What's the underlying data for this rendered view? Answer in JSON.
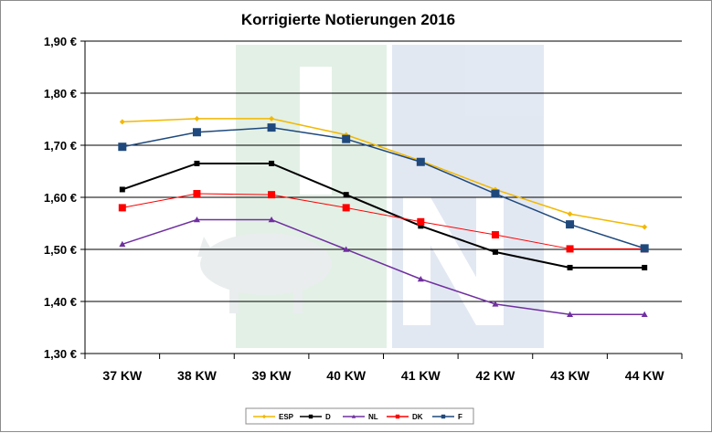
{
  "chart_data": {
    "type": "line",
    "title": "Korrigierte Notierungen 2016",
    "xlabel": "",
    "ylabel": "",
    "categories": [
      "37 KW",
      "38 KW",
      "39 KW",
      "40 KW",
      "41 KW",
      "42 KW",
      "43 KW",
      "44 KW"
    ],
    "ylim": [
      1.3,
      1.9
    ],
    "yticks": [
      "1,30 €",
      "1,40 €",
      "1,50 €",
      "1,60 €",
      "1,70 €",
      "1,80 €",
      "1,90 €"
    ],
    "grid": true,
    "legend_position": "bottom",
    "series": [
      {
        "name": "ESP",
        "color": "#f2b800",
        "marker": "diamond",
        "values": [
          1.745,
          1.751,
          1.751,
          1.72,
          1.67,
          1.615,
          1.568,
          1.543
        ]
      },
      {
        "name": "D",
        "color": "#000000",
        "marker": "square",
        "values": [
          1.615,
          1.665,
          1.665,
          1.605,
          1.545,
          1.495,
          1.465,
          1.465
        ]
      },
      {
        "name": "NL",
        "color": "#7030a0",
        "marker": "triangle",
        "values": [
          1.51,
          1.557,
          1.557,
          1.5,
          1.443,
          1.395,
          1.375,
          1.375
        ]
      },
      {
        "name": "DK",
        "color": "#ff0000",
        "marker": "square",
        "values": [
          1.58,
          1.607,
          1.605,
          1.58,
          1.553,
          1.528,
          1.501,
          1.501
        ]
      },
      {
        "name": "F",
        "color": "#1f497d",
        "marker": "square",
        "values": [
          1.697,
          1.725,
          1.734,
          1.712,
          1.668,
          1.607,
          1.548,
          1.502
        ]
      }
    ]
  }
}
